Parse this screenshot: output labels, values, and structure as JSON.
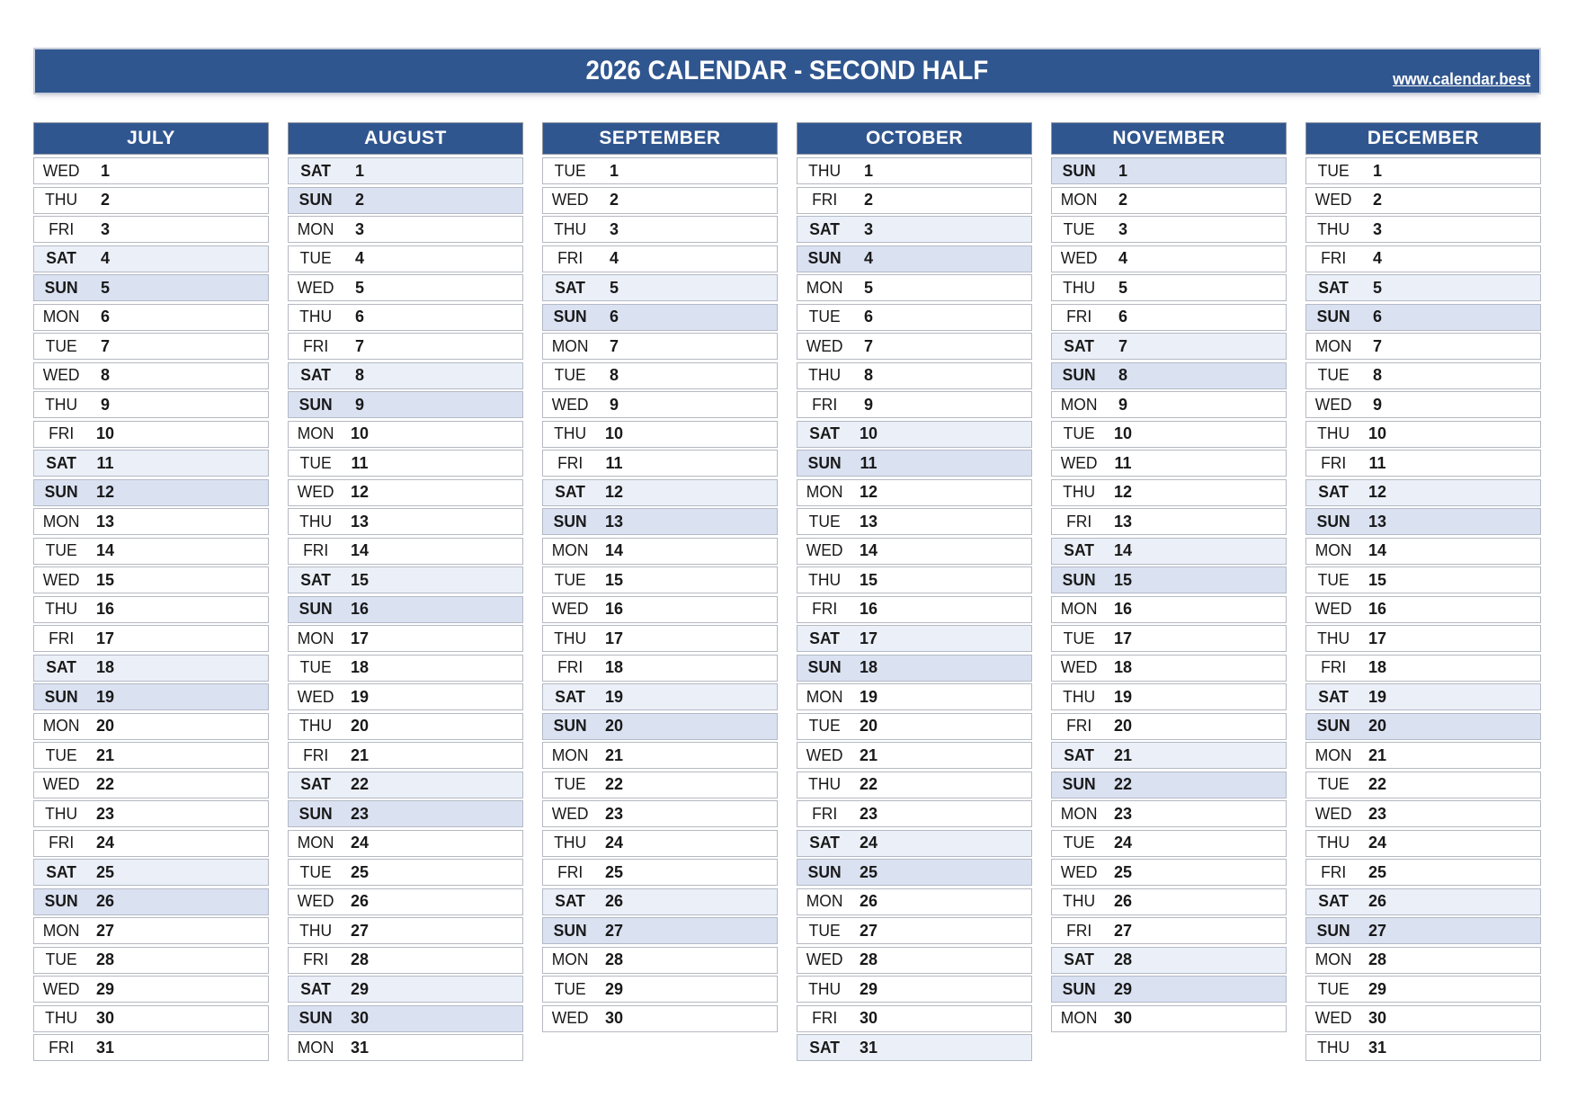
{
  "banner": {
    "title": "2026 CALENDAR - SECOND HALF",
    "website": "www.calendar.best"
  },
  "colors": {
    "header_blue": "#30568F",
    "saturday_bg": "#EBEFF7",
    "sunday_bg": "#DAE1F1",
    "text": "#191919",
    "row_border": "#b5b9c2"
  },
  "calendar": {
    "year": 2026,
    "half_label": "SECOND HALF",
    "months": [
      {
        "name": "JULY",
        "days": [
          [
            "WED",
            1
          ],
          [
            "THU",
            2
          ],
          [
            "FRI",
            3
          ],
          [
            "SAT",
            4
          ],
          [
            "SUN",
            5
          ],
          [
            "MON",
            6
          ],
          [
            "TUE",
            7
          ],
          [
            "WED",
            8
          ],
          [
            "THU",
            9
          ],
          [
            "FRI",
            10
          ],
          [
            "SAT",
            11
          ],
          [
            "SUN",
            12
          ],
          [
            "MON",
            13
          ],
          [
            "TUE",
            14
          ],
          [
            "WED",
            15
          ],
          [
            "THU",
            16
          ],
          [
            "FRI",
            17
          ],
          [
            "SAT",
            18
          ],
          [
            "SUN",
            19
          ],
          [
            "MON",
            20
          ],
          [
            "TUE",
            21
          ],
          [
            "WED",
            22
          ],
          [
            "THU",
            23
          ],
          [
            "FRI",
            24
          ],
          [
            "SAT",
            25
          ],
          [
            "SUN",
            26
          ],
          [
            "MON",
            27
          ],
          [
            "TUE",
            28
          ],
          [
            "WED",
            29
          ],
          [
            "THU",
            30
          ],
          [
            "FRI",
            31
          ]
        ]
      },
      {
        "name": "AUGUST",
        "days": [
          [
            "SAT",
            1
          ],
          [
            "SUN",
            2
          ],
          [
            "MON",
            3
          ],
          [
            "TUE",
            4
          ],
          [
            "WED",
            5
          ],
          [
            "THU",
            6
          ],
          [
            "FRI",
            7
          ],
          [
            "SAT",
            8
          ],
          [
            "SUN",
            9
          ],
          [
            "MON",
            10
          ],
          [
            "TUE",
            11
          ],
          [
            "WED",
            12
          ],
          [
            "THU",
            13
          ],
          [
            "FRI",
            14
          ],
          [
            "SAT",
            15
          ],
          [
            "SUN",
            16
          ],
          [
            "MON",
            17
          ],
          [
            "TUE",
            18
          ],
          [
            "WED",
            19
          ],
          [
            "THU",
            20
          ],
          [
            "FRI",
            21
          ],
          [
            "SAT",
            22
          ],
          [
            "SUN",
            23
          ],
          [
            "MON",
            24
          ],
          [
            "TUE",
            25
          ],
          [
            "WED",
            26
          ],
          [
            "THU",
            27
          ],
          [
            "FRI",
            28
          ],
          [
            "SAT",
            29
          ],
          [
            "SUN",
            30
          ],
          [
            "MON",
            31
          ]
        ]
      },
      {
        "name": "SEPTEMBER",
        "days": [
          [
            "TUE",
            1
          ],
          [
            "WED",
            2
          ],
          [
            "THU",
            3
          ],
          [
            "FRI",
            4
          ],
          [
            "SAT",
            5
          ],
          [
            "SUN",
            6
          ],
          [
            "MON",
            7
          ],
          [
            "TUE",
            8
          ],
          [
            "WED",
            9
          ],
          [
            "THU",
            10
          ],
          [
            "FRI",
            11
          ],
          [
            "SAT",
            12
          ],
          [
            "SUN",
            13
          ],
          [
            "MON",
            14
          ],
          [
            "TUE",
            15
          ],
          [
            "WED",
            16
          ],
          [
            "THU",
            17
          ],
          [
            "FRI",
            18
          ],
          [
            "SAT",
            19
          ],
          [
            "SUN",
            20
          ],
          [
            "MON",
            21
          ],
          [
            "TUE",
            22
          ],
          [
            "WED",
            23
          ],
          [
            "THU",
            24
          ],
          [
            "FRI",
            25
          ],
          [
            "SAT",
            26
          ],
          [
            "SUN",
            27
          ],
          [
            "MON",
            28
          ],
          [
            "TUE",
            29
          ],
          [
            "WED",
            30
          ]
        ]
      },
      {
        "name": "OCTOBER",
        "days": [
          [
            "THU",
            1
          ],
          [
            "FRI",
            2
          ],
          [
            "SAT",
            3
          ],
          [
            "SUN",
            4
          ],
          [
            "MON",
            5
          ],
          [
            "TUE",
            6
          ],
          [
            "WED",
            7
          ],
          [
            "THU",
            8
          ],
          [
            "FRI",
            9
          ],
          [
            "SAT",
            10
          ],
          [
            "SUN",
            11
          ],
          [
            "MON",
            12
          ],
          [
            "TUE",
            13
          ],
          [
            "WED",
            14
          ],
          [
            "THU",
            15
          ],
          [
            "FRI",
            16
          ],
          [
            "SAT",
            17
          ],
          [
            "SUN",
            18
          ],
          [
            "MON",
            19
          ],
          [
            "TUE",
            20
          ],
          [
            "WED",
            21
          ],
          [
            "THU",
            22
          ],
          [
            "FRI",
            23
          ],
          [
            "SAT",
            24
          ],
          [
            "SUN",
            25
          ],
          [
            "MON",
            26
          ],
          [
            "TUE",
            27
          ],
          [
            "WED",
            28
          ],
          [
            "THU",
            29
          ],
          [
            "FRI",
            30
          ],
          [
            "SAT",
            31
          ]
        ]
      },
      {
        "name": "NOVEMBER",
        "days": [
          [
            "SUN",
            1
          ],
          [
            "MON",
            2
          ],
          [
            "TUE",
            3
          ],
          [
            "WED",
            4
          ],
          [
            "THU",
            5
          ],
          [
            "FRI",
            6
          ],
          [
            "SAT",
            7
          ],
          [
            "SUN",
            8
          ],
          [
            "MON",
            9
          ],
          [
            "TUE",
            10
          ],
          [
            "WED",
            11
          ],
          [
            "THU",
            12
          ],
          [
            "FRI",
            13
          ],
          [
            "SAT",
            14
          ],
          [
            "SUN",
            15
          ],
          [
            "MON",
            16
          ],
          [
            "TUE",
            17
          ],
          [
            "WED",
            18
          ],
          [
            "THU",
            19
          ],
          [
            "FRI",
            20
          ],
          [
            "SAT",
            21
          ],
          [
            "SUN",
            22
          ],
          [
            "MON",
            23
          ],
          [
            "TUE",
            24
          ],
          [
            "WED",
            25
          ],
          [
            "THU",
            26
          ],
          [
            "FRI",
            27
          ],
          [
            "SAT",
            28
          ],
          [
            "SUN",
            29
          ],
          [
            "MON",
            30
          ]
        ]
      },
      {
        "name": "DECEMBER",
        "days": [
          [
            "TUE",
            1
          ],
          [
            "WED",
            2
          ],
          [
            "THU",
            3
          ],
          [
            "FRI",
            4
          ],
          [
            "SAT",
            5
          ],
          [
            "SUN",
            6
          ],
          [
            "MON",
            7
          ],
          [
            "TUE",
            8
          ],
          [
            "WED",
            9
          ],
          [
            "THU",
            10
          ],
          [
            "FRI",
            11
          ],
          [
            "SAT",
            12
          ],
          [
            "SUN",
            13
          ],
          [
            "MON",
            14
          ],
          [
            "TUE",
            15
          ],
          [
            "WED",
            16
          ],
          [
            "THU",
            17
          ],
          [
            "FRI",
            18
          ],
          [
            "SAT",
            19
          ],
          [
            "SUN",
            20
          ],
          [
            "MON",
            21
          ],
          [
            "TUE",
            22
          ],
          [
            "WED",
            23
          ],
          [
            "THU",
            24
          ],
          [
            "FRI",
            25
          ],
          [
            "SAT",
            26
          ],
          [
            "SUN",
            27
          ],
          [
            "MON",
            28
          ],
          [
            "TUE",
            29
          ],
          [
            "WED",
            30
          ],
          [
            "THU",
            31
          ]
        ]
      }
    ]
  }
}
